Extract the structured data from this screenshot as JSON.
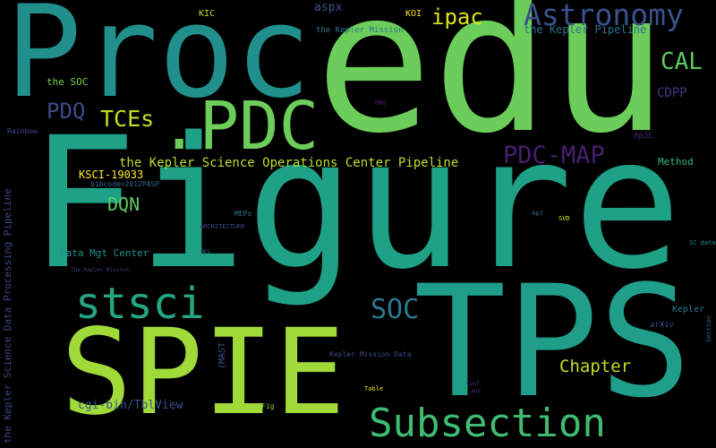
{
  "words": [
    {
      "text": "Proc",
      "color": "#21908d"
    },
    {
      "text": "edu",
      "color": "#6ccd5a"
    },
    {
      "text": "Astronomy",
      "color": "#3b518b"
    },
    {
      "text": "the Kepler Pipeline",
      "color": "#2c728e"
    },
    {
      "text": "ipac",
      "color": "#dde318"
    },
    {
      "text": "CAL",
      "color": "#5ec962"
    },
    {
      "text": ".PDC",
      "color": "#6ccd5a"
    },
    {
      "text": "Figure",
      "color": "#1fa188"
    },
    {
      "text": "TPS",
      "color": "#1f9e89"
    },
    {
      "text": "SPIE",
      "color": "#a0da39"
    },
    {
      "text": "Subsection",
      "color": "#3fbc73"
    },
    {
      "text": "stsci",
      "color": "#22a785"
    },
    {
      "text": "SOC",
      "color": "#2a788e"
    },
    {
      "text": "PDQ",
      "color": "#3e4989"
    },
    {
      "text": "TCEs",
      "color": "#c2df23"
    },
    {
      "text": "PDC-MAP",
      "color": "#481f70"
    },
    {
      "text": "the Kepler Science Operations Center Pipeline",
      "color": "#bddf26"
    },
    {
      "text": "KSCI-19033",
      "color": "#fde725"
    },
    {
      "text": "DQN",
      "color": "#5ec962"
    },
    {
      "text": "Chapter",
      "color": "#c2df23"
    },
    {
      "text": "cgi-bin/TblView",
      "color": "#3b528b"
    },
    {
      "text": "Data Mgt  Center",
      "color": "#21918c"
    },
    {
      "text": "KIC",
      "color": "#b5de2b"
    },
    {
      "text": "aspx",
      "color": "#3b528b"
    },
    {
      "text": "KOI",
      "color": "#fde725"
    },
    {
      "text": "the Kepler Mission",
      "color": "#2a788e"
    },
    {
      "text": "the SOC",
      "color": "#7ad151"
    },
    {
      "text": "CDPP",
      "color": "#443983"
    },
    {
      "text": "Method",
      "color": "#35b779"
    },
    {
      "text": "ApJL",
      "color": "#482878"
    },
    {
      "text": "Rainbow",
      "color": "#3e4989"
    },
    {
      "text": "bibcode=2012PASP",
      "color": "#31688e"
    },
    {
      "text": "MEPs",
      "color": "#2a788e"
    },
    {
      "text": "ARCHITECTURE",
      "color": "#3e4989"
    },
    {
      "text": "ApJ",
      "color": "#31688e"
    },
    {
      "text": "SVD",
      "color": "#dde318"
    },
    {
      "text": "SC data",
      "color": "#21918c"
    },
    {
      "text": "MNO",
      "color": "#481f70"
    },
    {
      "text": "MES",
      "color": "#2c728e"
    },
    {
      "text": "The Kepler Mission",
      "color": "#46327e"
    },
    {
      "text": "Kepler",
      "color": "#2a788e"
    },
    {
      "text": "arXiv",
      "color": "#3b528b"
    },
    {
      "text": "Kepler Mission Data",
      "color": "#3e4989"
    },
    {
      "text": "Table",
      "color": "#dde318"
    },
    {
      "text": "Conf",
      "color": "#472d7b"
    },
    {
      "text": "app",
      "color": "#472d7b"
    },
    {
      "text": "Fig",
      "color": "#8fd744"
    },
    {
      "text": "(MAST",
      "color": "#3b528b"
    },
    {
      "text": "the Kepler Science Data Processing Pipeline",
      "color": "#414487"
    },
    {
      "text": "Section",
      "color": "#31688e"
    }
  ]
}
